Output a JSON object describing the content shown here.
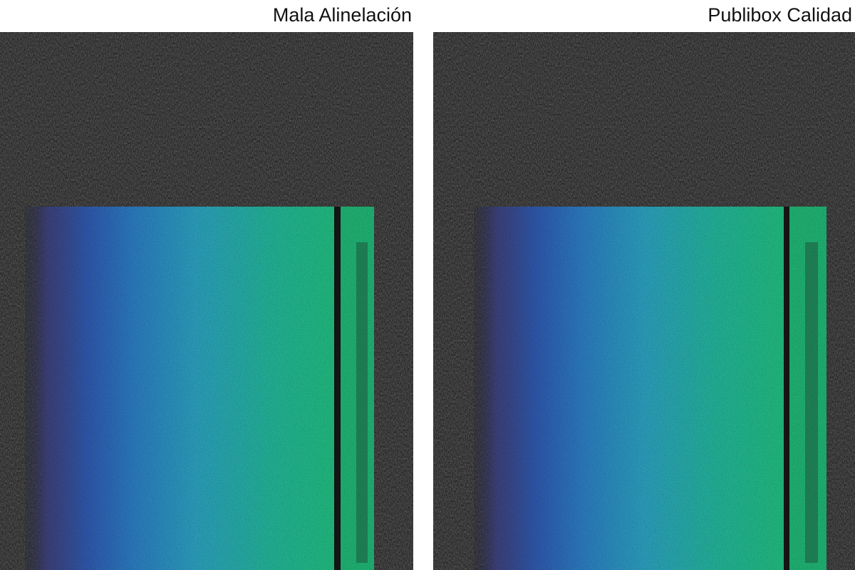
{
  "panels": [
    {
      "caption": "Mala Alinelación"
    },
    {
      "caption": "Publibox Calidad"
    }
  ]
}
